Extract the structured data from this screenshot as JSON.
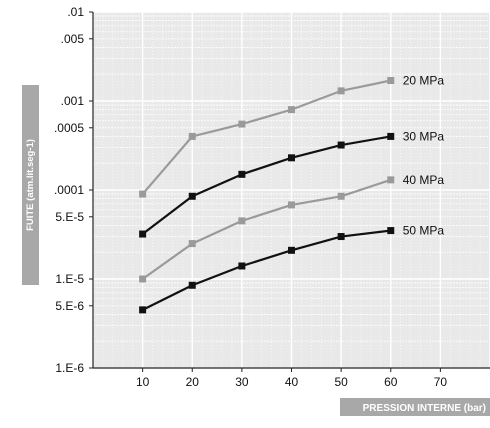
{
  "chart_data": {
    "type": "line",
    "title": "",
    "xlabel": "PRESSION INTERNE  (bar)",
    "ylabel": "FUITE (atm.lit.seg-1)",
    "yscale": "log",
    "ylim": [
      1e-06,
      0.01
    ],
    "xlim": [
      0,
      80
    ],
    "grid": true,
    "legend": "inline-right",
    "x_ticks": [
      {
        "value": 10,
        "label": "10"
      },
      {
        "value": 20,
        "label": "20"
      },
      {
        "value": 30,
        "label": "30"
      },
      {
        "value": 40,
        "label": "40"
      },
      {
        "value": 50,
        "label": "50"
      },
      {
        "value": 60,
        "label": "60"
      },
      {
        "value": 70,
        "label": "70"
      }
    ],
    "y_ticks": [
      {
        "value": 0.01,
        "label": ".01"
      },
      {
        "value": 0.005,
        "label": ".005"
      },
      {
        "value": 0.001,
        "label": ".001"
      },
      {
        "value": 0.0005,
        "label": ".0005"
      },
      {
        "value": 0.0001,
        "label": ".0001"
      },
      {
        "value": 5e-05,
        "label": "5.E-5"
      },
      {
        "value": 1e-05,
        "label": "1.E-5"
      },
      {
        "value": 5e-06,
        "label": "5.E-6"
      },
      {
        "value": 1e-06,
        "label": "1.E-6"
      }
    ],
    "x": [
      10,
      20,
      30,
      40,
      50,
      60
    ],
    "series": [
      {
        "name": "20 MPa",
        "color": "#9a9a9a",
        "values": [
          9e-05,
          0.0004,
          0.00055,
          0.0008,
          0.0013,
          0.0017
        ]
      },
      {
        "name": "30 MPa",
        "color": "#111111",
        "values": [
          3.2e-05,
          8.5e-05,
          0.00015,
          0.00023,
          0.00032,
          0.0004
        ]
      },
      {
        "name": "40 MPa",
        "color": "#9a9a9a",
        "values": [
          1e-05,
          2.5e-05,
          4.5e-05,
          6.8e-05,
          8.5e-05,
          0.00013
        ]
      },
      {
        "name": "50 MPa",
        "color": "#111111",
        "values": [
          4.5e-06,
          8.5e-06,
          1.4e-05,
          2.1e-05,
          3e-05,
          3.5e-05
        ]
      }
    ],
    "colors": {
      "plot_background": "#e9e9e9",
      "grid": "#ffffff",
      "ylabel_background": "#a8a8a8",
      "xlabel_background": "#a8a8a8",
      "label_text": "#ffffff",
      "tick_text": "#111111"
    }
  }
}
